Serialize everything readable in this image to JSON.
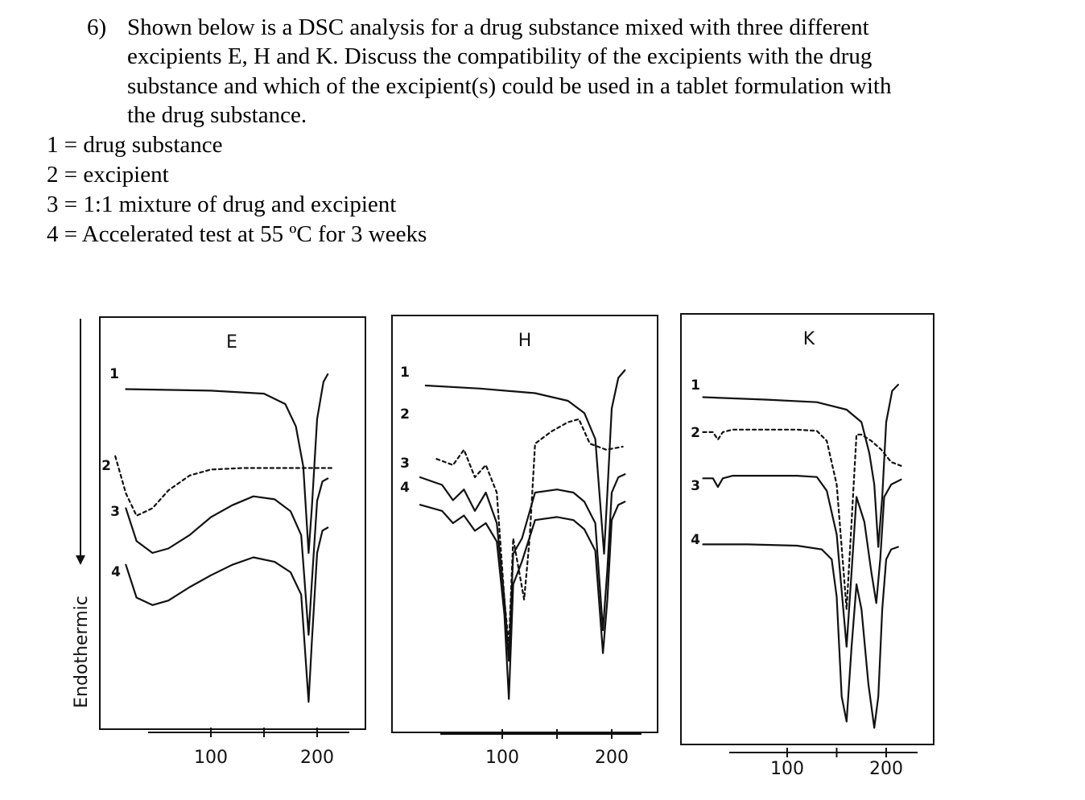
{
  "question": {
    "number": "6)",
    "lines": [
      "Shown below is a DSC analysis for a drug substance mixed with three different",
      "excipients E, H and K. Discuss the compatibility of the excipients with the drug",
      "substance and which of the excipient(s) could be used in a tablet formulation with",
      "the drug substance."
    ],
    "legend": [
      "1 = drug substance",
      "2 = excipient",
      "3 = 1:1 mixture of drug and excipient",
      "4 = Accelerated test at 55 ºC for 3 weeks"
    ]
  },
  "chart_data": [
    {
      "type": "line",
      "title": "E",
      "ylabel": "Endothermic",
      "xticks": [
        "100",
        "200"
      ],
      "series_labels": [
        "1",
        "2",
        "3",
        "4"
      ],
      "series": [
        {
          "name": "1",
          "style": "solid",
          "x": [
            20,
            100,
            150,
            170,
            180,
            187,
            192,
            195,
            200,
            206,
            210
          ],
          "y": [
            10,
            11,
            13,
            20,
            35,
            62,
            120,
            90,
            30,
            5,
            0
          ]
        },
        {
          "name": "2",
          "style": "dashed",
          "x": [
            10,
            20,
            30,
            45,
            60,
            80,
            100,
            130,
            160,
            190,
            215
          ],
          "y": [
            55,
            80,
            95,
            90,
            78,
            68,
            64,
            63,
            63,
            63,
            63
          ]
        },
        {
          "name": "3",
          "style": "solid",
          "x": [
            20,
            30,
            45,
            60,
            80,
            100,
            120,
            140,
            160,
            175,
            185,
            192,
            195,
            200,
            205,
            210
          ],
          "y": [
            90,
            112,
            120,
            117,
            108,
            96,
            88,
            82,
            84,
            92,
            108,
            175,
            140,
            85,
            72,
            70
          ]
        },
        {
          "name": "4",
          "style": "solid",
          "x": [
            20,
            30,
            45,
            60,
            80,
            100,
            120,
            140,
            160,
            175,
            185,
            192,
            195,
            200,
            205,
            210
          ],
          "y": [
            128,
            150,
            155,
            152,
            143,
            135,
            128,
            123,
            126,
            133,
            148,
            220,
            180,
            120,
            105,
            103
          ]
        }
      ]
    },
    {
      "type": "line",
      "title": "H",
      "ylabel": "",
      "xticks": [
        "100",
        "200"
      ],
      "series_labels": [
        "1",
        "2",
        "3",
        "4"
      ],
      "series": [
        {
          "name": "1",
          "style": "solid",
          "x": [
            30,
            80,
            130,
            160,
            175,
            185,
            193,
            196,
            200,
            206,
            212
          ],
          "y": [
            10,
            12,
            15,
            20,
            28,
            45,
            120,
            80,
            25,
            5,
            0
          ]
        },
        {
          "name": "2",
          "style": "dashed",
          "x": [
            40,
            55,
            65,
            75,
            85,
            95,
            102,
            106,
            110,
            120,
            125,
            130,
            145,
            160,
            170,
            180,
            195,
            210
          ],
          "y": [
            58,
            62,
            52,
            70,
            62,
            80,
            150,
            180,
            110,
            150,
            110,
            48,
            40,
            34,
            32,
            48,
            52,
            50
          ]
        },
        {
          "name": "3",
          "style": "solid",
          "x": [
            25,
            45,
            55,
            65,
            75,
            85,
            95,
            102,
            106,
            110,
            118,
            130,
            150,
            165,
            175,
            185,
            192,
            196,
            200,
            206,
            212
          ],
          "y": [
            70,
            75,
            85,
            78,
            92,
            80,
            100,
            150,
            190,
            120,
            110,
            80,
            78,
            80,
            86,
            100,
            170,
            130,
            80,
            70,
            68
          ]
        },
        {
          "name": "4",
          "style": "solid",
          "x": [
            25,
            45,
            55,
            65,
            75,
            85,
            95,
            102,
            106,
            110,
            118,
            130,
            150,
            165,
            175,
            185,
            192,
            196,
            200,
            206,
            212
          ],
          "y": [
            88,
            92,
            100,
            95,
            105,
            100,
            112,
            160,
            215,
            140,
            125,
            98,
            96,
            98,
            104,
            118,
            185,
            150,
            98,
            88,
            86
          ]
        }
      ]
    },
    {
      "type": "line",
      "title": "K",
      "ylabel": "",
      "xticks": [
        "100",
        "200"
      ],
      "series_labels": [
        "1",
        "2",
        "3",
        "4"
      ],
      "series": [
        {
          "name": "1",
          "style": "solid",
          "x": [
            15,
            80,
            130,
            160,
            175,
            183,
            188,
            192,
            196,
            200,
            206,
            212
          ],
          "y": [
            10,
            12,
            14,
            20,
            30,
            55,
            80,
            130,
            90,
            30,
            5,
            0
          ]
        },
        {
          "name": "2",
          "style": "dashed",
          "x": [
            15,
            25,
            30,
            35,
            45,
            60,
            80,
            110,
            130,
            140,
            150,
            160,
            165,
            170,
            175,
            185,
            195,
            205,
            215
          ],
          "y": [
            38,
            38,
            44,
            38,
            36,
            36,
            36,
            36,
            37,
            45,
            80,
            180,
            110,
            40,
            40,
            45,
            52,
            62,
            65
          ]
        },
        {
          "name": "3",
          "style": "solid",
          "x": [
            15,
            25,
            30,
            35,
            45,
            60,
            80,
            110,
            130,
            140,
            150,
            160,
            165,
            170,
            178,
            185,
            190,
            194,
            198,
            205,
            215
          ],
          "y": [
            75,
            75,
            82,
            75,
            73,
            73,
            73,
            73,
            74,
            85,
            120,
            210,
            150,
            90,
            110,
            150,
            175,
            140,
            90,
            80,
            76
          ]
        },
        {
          "name": "4",
          "style": "solid",
          "x": [
            15,
            60,
            110,
            135,
            145,
            150,
            155,
            160,
            165,
            170,
            175,
            182,
            188,
            192,
            196,
            200,
            205,
            212
          ],
          "y": [
            128,
            128,
            129,
            132,
            140,
            170,
            250,
            270,
            210,
            160,
            180,
            240,
            275,
            250,
            180,
            140,
            132,
            130
          ]
        }
      ]
    }
  ]
}
